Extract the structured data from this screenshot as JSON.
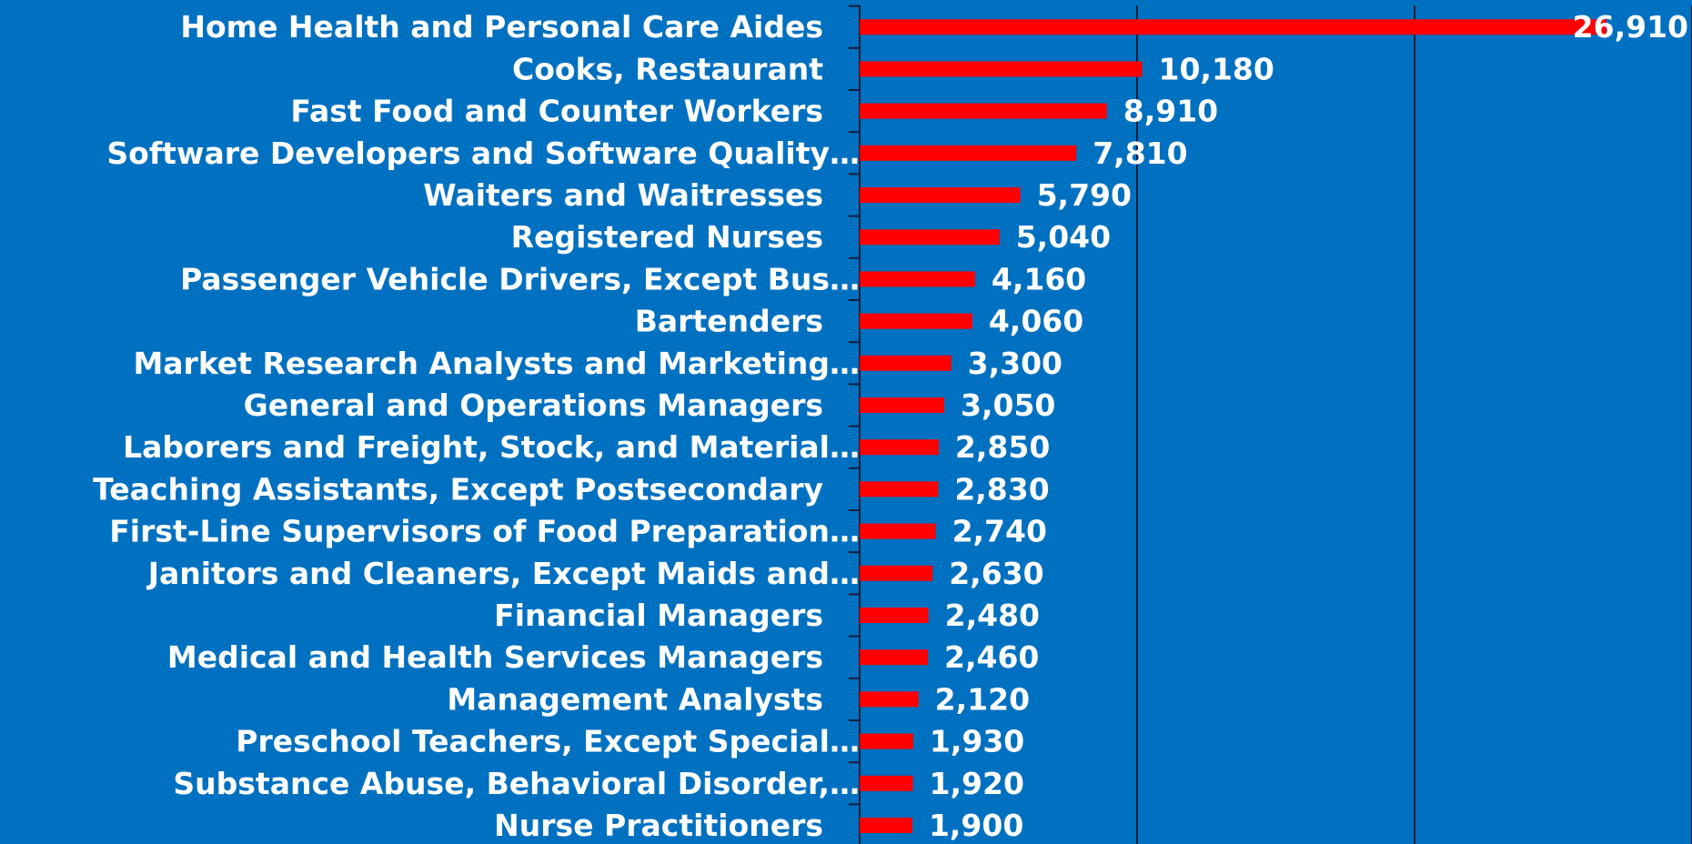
{
  "chart_data": {
    "type": "barh",
    "categories": [
      "Home Health and Personal Care Aides",
      "Cooks, Restaurant",
      "Fast Food and Counter Workers",
      "Software Developers and Software Quality…",
      "Waiters and Waitresses",
      "Registered Nurses",
      "Passenger Vehicle Drivers, Except Bus…",
      "Bartenders",
      "Market Research Analysts and Marketing…",
      "General and Operations Managers",
      "Laborers and Freight, Stock, and Material…",
      "Teaching Assistants, Except Postsecondary",
      "First-Line Supervisors of Food Preparation…",
      "Janitors and Cleaners, Except Maids and…",
      "Financial Managers",
      "Medical and Health Services Managers",
      "Management Analysts",
      "Preschool Teachers, Except Special…",
      "Substance Abuse, Behavioral Disorder,…",
      "Nurse Practitioners"
    ],
    "values": [
      26910,
      10180,
      8910,
      7810,
      5790,
      5040,
      4160,
      4060,
      3300,
      3050,
      2850,
      2830,
      2740,
      2630,
      2480,
      2460,
      2120,
      1930,
      1920,
      1900
    ],
    "value_labels": [
      "26,910",
      "10,180",
      "8,910",
      "7,810",
      "5,790",
      "5,040",
      "4,160",
      "4,060",
      "3,300",
      "3,050",
      "2,850",
      "2,830",
      "2,740",
      "2,630",
      "2,480",
      "2,460",
      "2,120",
      "1,930",
      "1,920",
      "1,900"
    ],
    "color": "#ff0000",
    "xlim": [
      0,
      30000
    ],
    "xticks": [
      0,
      10000,
      20000,
      30000
    ],
    "grid": true
  }
}
